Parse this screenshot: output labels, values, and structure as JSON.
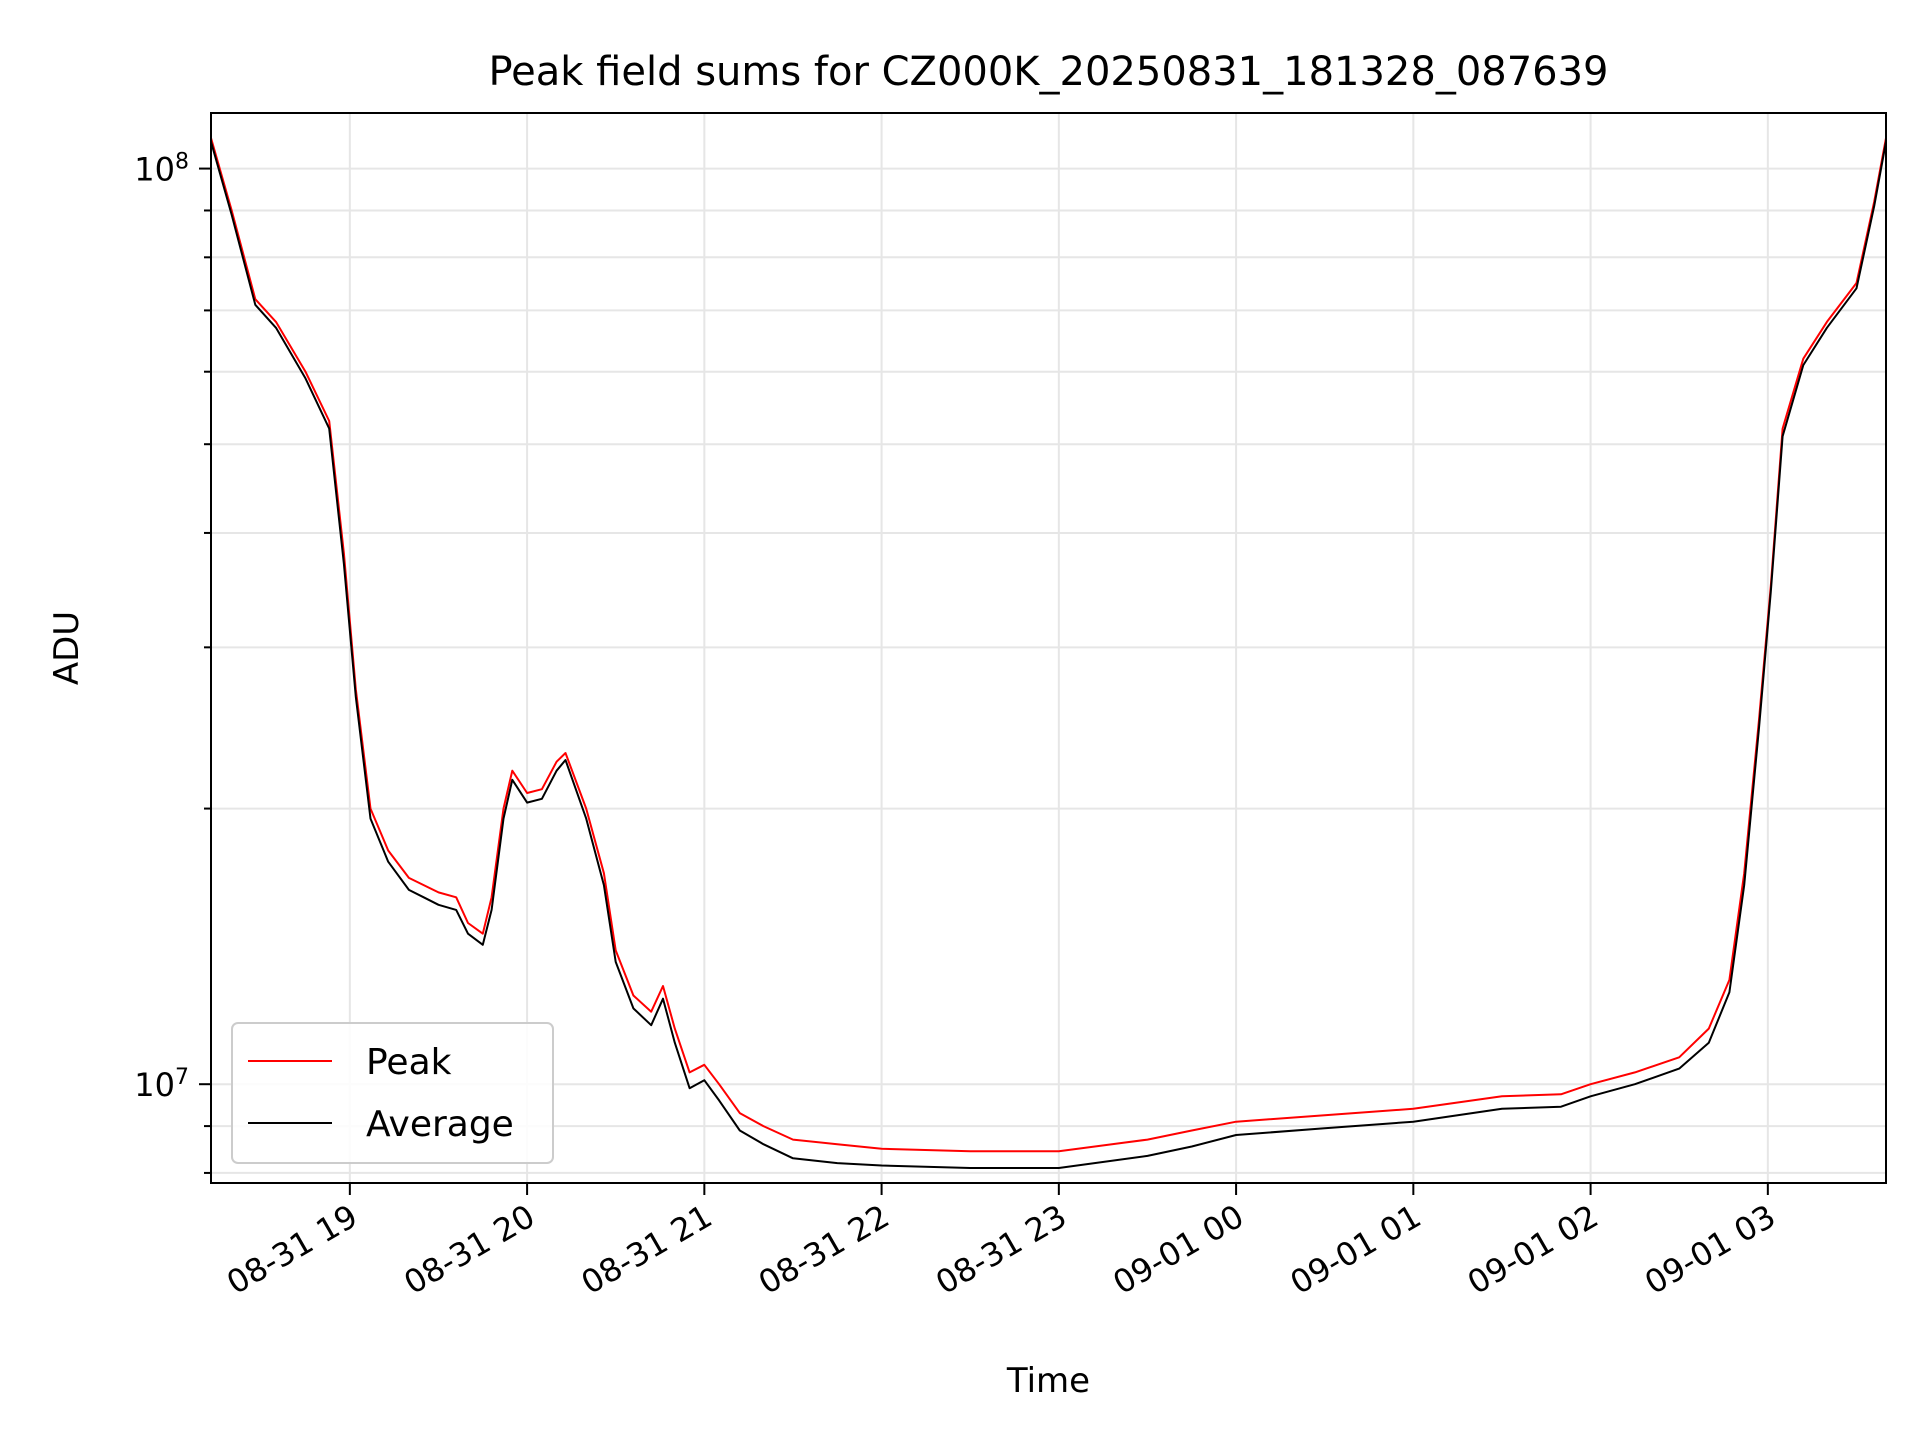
{
  "chart_data": {
    "type": "line",
    "title": "Peak field sums for CZ000K_20250831_181328_087639",
    "xlabel": "Time",
    "ylabel": "ADU",
    "yscale": "log",
    "xlim": [
      "2025-08-31 18:13",
      "2025-09-01 03:40"
    ],
    "ylim": [
      7800000,
      115000000
    ],
    "grid": true,
    "legend_position": "lower-left",
    "x_ticks": [
      {
        "label": "08-31 19",
        "t": "2025-08-31 19:00"
      },
      {
        "label": "08-31 20",
        "t": "2025-08-31 20:00"
      },
      {
        "label": "08-31 21",
        "t": "2025-08-31 21:00"
      },
      {
        "label": "08-31 22",
        "t": "2025-08-31 22:00"
      },
      {
        "label": "08-31 23",
        "t": "2025-08-31 23:00"
      },
      {
        "label": "09-01 00",
        "t": "2025-09-01 00:00"
      },
      {
        "label": "09-01 01",
        "t": "2025-09-01 01:00"
      },
      {
        "label": "09-01 02",
        "t": "2025-09-01 02:00"
      },
      {
        "label": "09-01 03",
        "t": "2025-09-01 03:00"
      }
    ],
    "y_ticks_major": [
      {
        "value": 10000000,
        "base": "10",
        "exp": "7"
      },
      {
        "value": 100000000,
        "base": "10",
        "exp": "8"
      }
    ],
    "series": [
      {
        "name": "Peak",
        "color": "#ff0000",
        "points": [
          [
            "2025-08-31 18:13",
            108000000
          ],
          [
            "2025-08-31 18:20",
            90000000
          ],
          [
            "2025-08-31 18:28",
            72000000
          ],
          [
            "2025-08-31 18:35",
            68000000
          ],
          [
            "2025-08-31 18:45",
            60000000
          ],
          [
            "2025-08-31 18:53",
            53000000
          ],
          [
            "2025-08-31 18:58",
            38000000
          ],
          [
            "2025-08-31 19:02",
            27000000
          ],
          [
            "2025-08-31 19:07",
            20000000
          ],
          [
            "2025-08-31 19:13",
            18000000
          ],
          [
            "2025-08-31 19:20",
            16800000
          ],
          [
            "2025-08-31 19:25",
            16500000
          ],
          [
            "2025-08-31 19:30",
            16200000
          ],
          [
            "2025-08-31 19:36",
            16000000
          ],
          [
            "2025-08-31 19:40",
            15000000
          ],
          [
            "2025-08-31 19:45",
            14600000
          ],
          [
            "2025-08-31 19:48",
            16000000
          ],
          [
            "2025-08-31 19:52",
            20000000
          ],
          [
            "2025-08-31 19:55",
            22000000
          ],
          [
            "2025-08-31 20:00",
            20800000
          ],
          [
            "2025-08-31 20:05",
            21000000
          ],
          [
            "2025-08-31 20:10",
            22500000
          ],
          [
            "2025-08-31 20:13",
            23000000
          ],
          [
            "2025-08-31 20:20",
            20000000
          ],
          [
            "2025-08-31 20:26",
            17000000
          ],
          [
            "2025-08-31 20:30",
            14000000
          ],
          [
            "2025-08-31 20:36",
            12500000
          ],
          [
            "2025-08-31 20:42",
            12000000
          ],
          [
            "2025-08-31 20:46",
            12800000
          ],
          [
            "2025-08-31 20:50",
            11500000
          ],
          [
            "2025-08-31 20:55",
            10300000
          ],
          [
            "2025-08-31 21:00",
            10500000
          ],
          [
            "2025-08-31 21:05",
            10000000
          ],
          [
            "2025-08-31 21:12",
            9300000
          ],
          [
            "2025-08-31 21:20",
            9000000
          ],
          [
            "2025-08-31 21:30",
            8700000
          ],
          [
            "2025-08-31 21:45",
            8600000
          ],
          [
            "2025-08-31 22:00",
            8500000
          ],
          [
            "2025-08-31 22:30",
            8450000
          ],
          [
            "2025-08-31 23:00",
            8450000
          ],
          [
            "2025-08-31 23:30",
            8700000
          ],
          [
            "2025-08-31 23:45",
            8900000
          ],
          [
            "2025-09-01 00:00",
            9100000
          ],
          [
            "2025-09-01 00:30",
            9250000
          ],
          [
            "2025-09-01 01:00",
            9400000
          ],
          [
            "2025-09-01 01:30",
            9700000
          ],
          [
            "2025-09-01 01:50",
            9750000
          ],
          [
            "2025-09-01 02:00",
            10000000
          ],
          [
            "2025-09-01 02:15",
            10300000
          ],
          [
            "2025-09-01 02:30",
            10700000
          ],
          [
            "2025-09-01 02:40",
            11500000
          ],
          [
            "2025-09-01 02:47",
            13000000
          ],
          [
            "2025-09-01 02:52",
            17000000
          ],
          [
            "2025-09-01 02:57",
            25000000
          ],
          [
            "2025-09-01 03:01",
            35000000
          ],
          [
            "2025-09-01 03:05",
            52000000
          ],
          [
            "2025-09-01 03:12",
            62000000
          ],
          [
            "2025-09-01 03:20",
            68000000
          ],
          [
            "2025-09-01 03:30",
            75000000
          ],
          [
            "2025-09-01 03:36",
            92000000
          ],
          [
            "2025-09-01 03:40",
            108000000
          ]
        ]
      },
      {
        "name": "Average",
        "color": "#000000",
        "points": [
          [
            "2025-08-31 18:13",
            107000000
          ],
          [
            "2025-08-31 18:20",
            89000000
          ],
          [
            "2025-08-31 18:28",
            71000000
          ],
          [
            "2025-08-31 18:35",
            67000000
          ],
          [
            "2025-08-31 18:45",
            59000000
          ],
          [
            "2025-08-31 18:53",
            52000000
          ],
          [
            "2025-08-31 18:58",
            37000000
          ],
          [
            "2025-08-31 19:02",
            26500000
          ],
          [
            "2025-08-31 19:07",
            19500000
          ],
          [
            "2025-08-31 19:13",
            17500000
          ],
          [
            "2025-08-31 19:20",
            16300000
          ],
          [
            "2025-08-31 19:25",
            16000000
          ],
          [
            "2025-08-31 19:30",
            15700000
          ],
          [
            "2025-08-31 19:36",
            15500000
          ],
          [
            "2025-08-31 19:40",
            14600000
          ],
          [
            "2025-08-31 19:45",
            14200000
          ],
          [
            "2025-08-31 19:48",
            15500000
          ],
          [
            "2025-08-31 19:52",
            19500000
          ],
          [
            "2025-08-31 19:55",
            21500000
          ],
          [
            "2025-08-31 20:00",
            20300000
          ],
          [
            "2025-08-31 20:05",
            20500000
          ],
          [
            "2025-08-31 20:10",
            22000000
          ],
          [
            "2025-08-31 20:13",
            22600000
          ],
          [
            "2025-08-31 20:20",
            19500000
          ],
          [
            "2025-08-31 20:26",
            16500000
          ],
          [
            "2025-08-31 20:30",
            13600000
          ],
          [
            "2025-08-31 20:36",
            12100000
          ],
          [
            "2025-08-31 20:42",
            11600000
          ],
          [
            "2025-08-31 20:46",
            12400000
          ],
          [
            "2025-08-31 20:50",
            11100000
          ],
          [
            "2025-08-31 20:55",
            9900000
          ],
          [
            "2025-08-31 21:00",
            10100000
          ],
          [
            "2025-08-31 21:05",
            9600000
          ],
          [
            "2025-08-31 21:12",
            8900000
          ],
          [
            "2025-08-31 21:20",
            8600000
          ],
          [
            "2025-08-31 21:30",
            8300000
          ],
          [
            "2025-08-31 21:45",
            8200000
          ],
          [
            "2025-08-31 22:00",
            8150000
          ],
          [
            "2025-08-31 22:30",
            8100000
          ],
          [
            "2025-08-31 23:00",
            8100000
          ],
          [
            "2025-08-31 23:30",
            8350000
          ],
          [
            "2025-08-31 23:45",
            8550000
          ],
          [
            "2025-09-01 00:00",
            8800000
          ],
          [
            "2025-09-01 00:30",
            8950000
          ],
          [
            "2025-09-01 01:00",
            9100000
          ],
          [
            "2025-09-01 01:30",
            9400000
          ],
          [
            "2025-09-01 01:50",
            9450000
          ],
          [
            "2025-09-01 02:00",
            9700000
          ],
          [
            "2025-09-01 02:15",
            10000000
          ],
          [
            "2025-09-01 02:30",
            10400000
          ],
          [
            "2025-09-01 02:40",
            11100000
          ],
          [
            "2025-09-01 02:47",
            12600000
          ],
          [
            "2025-09-01 02:52",
            16500000
          ],
          [
            "2025-09-01 02:57",
            24500000
          ],
          [
            "2025-09-01 03:01",
            34500000
          ],
          [
            "2025-09-01 03:05",
            51000000
          ],
          [
            "2025-09-01 03:12",
            61000000
          ],
          [
            "2025-09-01 03:20",
            67000000
          ],
          [
            "2025-09-01 03:30",
            74000000
          ],
          [
            "2025-09-01 03:36",
            91000000
          ],
          [
            "2025-09-01 03:40",
            107000000
          ]
        ]
      }
    ]
  }
}
